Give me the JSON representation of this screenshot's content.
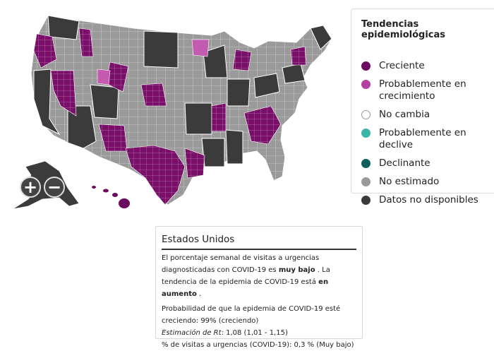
{
  "legend": {
    "title": "Tendencias epidemiológicas",
    "items": [
      {
        "label": "Creciente",
        "color": "#6b0a5e",
        "border": "#6b0a5e"
      },
      {
        "label": "Probablemente en crecimiento",
        "color": "#b33fa0",
        "border": "#b33fa0"
      },
      {
        "label": "No cambia",
        "color": "#ffffff",
        "border": "#9a9a9a"
      },
      {
        "label": "Probablemente en declive",
        "color": "#3ab5a8",
        "border": "#3ab5a8"
      },
      {
        "label": "Declinante",
        "color": "#0f5e5e",
        "border": "#0f5e5e"
      },
      {
        "label": "No estimado",
        "color": "#9a9a9a",
        "border": "#9a9a9a"
      },
      {
        "label": "Datos no disponibles",
        "color": "#3b3b3b",
        "border": "#3b3b3b"
      }
    ]
  },
  "zoom": {
    "in": "+",
    "out": "−"
  },
  "info": {
    "title": "Estados Unidos",
    "p1_a": "El porcentaje semanal de visitas a urgencias diagnosticadas con COVID-19 es",
    "p1_b": "muy bajo",
    "p1_c": ". La tendencia de la epidemia de COVID-19 está",
    "p1_d": "en aumento",
    "p1_e": ".",
    "line1": "Probabilidad de que la epidemia de COVID-19 esté",
    "line2": "creciendo: 99% (creciendo)",
    "rt_label": "Estimación de Rt",
    "rt_value": ": 1,08 (1,01 - 1,15)",
    "line4": "% de visitas a urgencias (COVID-19): 0,3 % (Muy bajo)"
  },
  "map_colors": {
    "increasing": "#6b0a5e",
    "likely_increasing": "#b33fa0",
    "not_estimated": "#9a9a9a",
    "no_data": "#3b3b3b",
    "border": "#ffffff"
  }
}
